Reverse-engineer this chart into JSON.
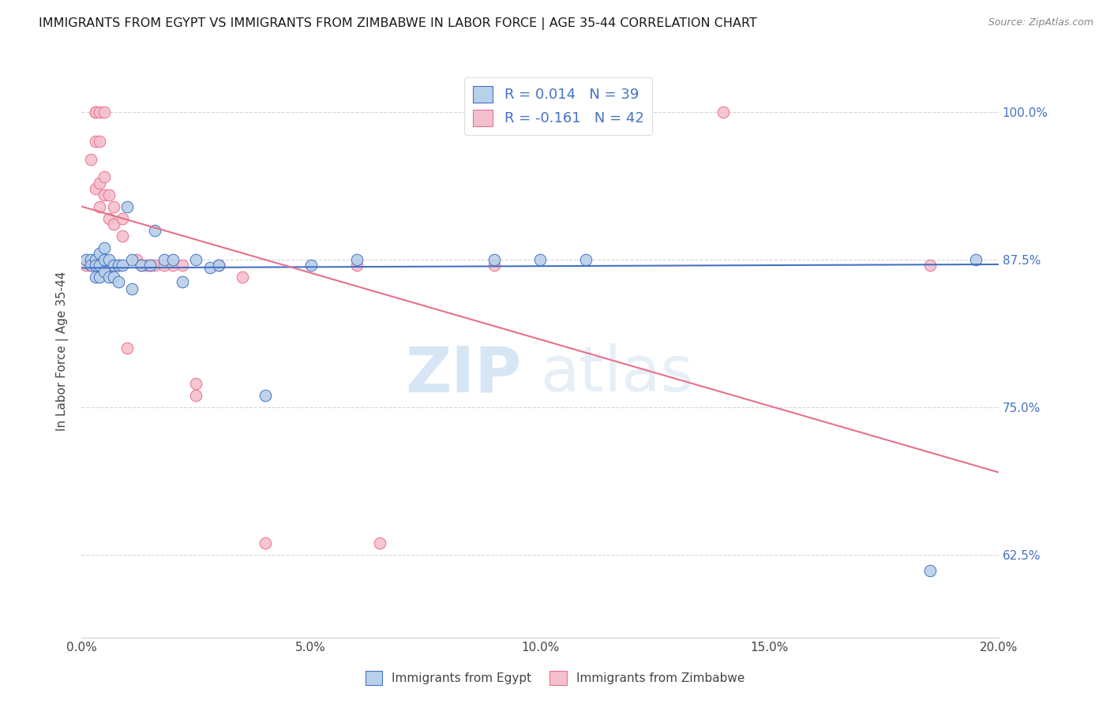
{
  "title": "IMMIGRANTS FROM EGYPT VS IMMIGRANTS FROM ZIMBABWE IN LABOR FORCE | AGE 35-44 CORRELATION CHART",
  "source": "Source: ZipAtlas.com",
  "ylabel": "In Labor Force | Age 35-44",
  "x_tick_labels": [
    "0.0%",
    "5.0%",
    "10.0%",
    "15.0%",
    "20.0%"
  ],
  "x_tick_values": [
    0.0,
    0.05,
    0.1,
    0.15,
    0.2
  ],
  "y_tick_labels": [
    "62.5%",
    "75.0%",
    "87.5%",
    "100.0%"
  ],
  "y_tick_values": [
    0.625,
    0.75,
    0.875,
    1.0
  ],
  "xlim": [
    0.0,
    0.2
  ],
  "ylim": [
    0.555,
    1.04
  ],
  "egypt_R": 0.014,
  "egypt_N": 39,
  "zimbabwe_R": -0.161,
  "zimbabwe_N": 42,
  "egypt_color": "#b8d0e8",
  "zimbabwe_color": "#f5c0ce",
  "egypt_line_color": "#4472c4",
  "zimbabwe_line_color": "#e8708a",
  "background_color": "#ffffff",
  "watermark_text": "ZIPatlas",
  "egypt_line_x": [
    0.0,
    0.2
  ],
  "egypt_line_y": [
    0.868,
    0.871
  ],
  "zimbabwe_line_x": [
    0.0,
    0.2
  ],
  "zimbabwe_line_y": [
    0.92,
    0.695
  ],
  "egypt_x": [
    0.001,
    0.002,
    0.002,
    0.003,
    0.003,
    0.003,
    0.004,
    0.004,
    0.004,
    0.005,
    0.005,
    0.005,
    0.006,
    0.006,
    0.007,
    0.007,
    0.008,
    0.008,
    0.009,
    0.01,
    0.011,
    0.011,
    0.013,
    0.015,
    0.016,
    0.018,
    0.02,
    0.022,
    0.025,
    0.028,
    0.03,
    0.04,
    0.05,
    0.06,
    0.09,
    0.1,
    0.11,
    0.185,
    0.195
  ],
  "egypt_y": [
    0.875,
    0.875,
    0.87,
    0.875,
    0.87,
    0.86,
    0.88,
    0.87,
    0.86,
    0.885,
    0.875,
    0.865,
    0.875,
    0.86,
    0.87,
    0.86,
    0.87,
    0.856,
    0.87,
    0.92,
    0.875,
    0.85,
    0.87,
    0.87,
    0.9,
    0.875,
    0.875,
    0.856,
    0.875,
    0.868,
    0.87,
    0.76,
    0.87,
    0.875,
    0.875,
    0.875,
    0.875,
    0.612,
    0.875
  ],
  "zimbabwe_x": [
    0.001,
    0.002,
    0.002,
    0.003,
    0.003,
    0.003,
    0.003,
    0.004,
    0.004,
    0.004,
    0.004,
    0.005,
    0.005,
    0.005,
    0.005,
    0.006,
    0.006,
    0.006,
    0.007,
    0.007,
    0.008,
    0.009,
    0.009,
    0.01,
    0.012,
    0.013,
    0.014,
    0.015,
    0.016,
    0.018,
    0.02,
    0.022,
    0.025,
    0.025,
    0.03,
    0.035,
    0.04,
    0.06,
    0.065,
    0.09,
    0.14,
    0.185
  ],
  "zimbabwe_y": [
    0.87,
    0.96,
    0.87,
    1.0,
    1.0,
    0.975,
    0.935,
    1.0,
    0.975,
    0.94,
    0.92,
    1.0,
    0.945,
    0.93,
    0.87,
    0.93,
    0.91,
    0.87,
    0.92,
    0.905,
    0.87,
    0.91,
    0.895,
    0.8,
    0.875,
    0.87,
    0.87,
    0.87,
    0.87,
    0.87,
    0.87,
    0.87,
    0.76,
    0.77,
    0.87,
    0.86,
    0.635,
    0.87,
    0.635,
    0.87,
    1.0,
    0.87
  ]
}
